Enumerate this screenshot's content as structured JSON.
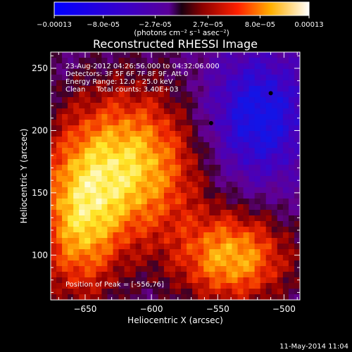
{
  "colorbar": {
    "tick_labels": [
      "-0.00013",
      "-8.0e-05",
      "-2.7e-05",
      "2.7e-05",
      "8.0e-05",
      "0.00013"
    ],
    "unit": "(photons cm⁻² s⁻¹ asec⁻²)",
    "min": -0.00013,
    "max": 0.00013
  },
  "plot": {
    "title": "Reconstructed RHESSI Image",
    "annotations": [
      "23-Aug-2012 04:26:56.000 to 04:32:06.000",
      "Detectors: 3F 5F 6F 7F 8F 9F, Att 0",
      "Energy Range: 12.0 - 25.0 keV",
      "Clean     Total counts: 3.40E+03"
    ],
    "peak_text": "Position of Peak = [-556,76]",
    "footer_date": "11-May-2014 11:04"
  },
  "chart_data": {
    "type": "heatmap",
    "title": "Reconstructed RHESSI Image",
    "xlabel": "Heliocentric X (arcsec)",
    "ylabel": "Heliocentric Y (arcsec)",
    "xlim": [
      -676,
      -488
    ],
    "ylim": [
      64,
      263
    ],
    "x_ticks": [
      -650,
      -600,
      -550,
      -500
    ],
    "y_ticks": [
      100,
      150,
      200,
      250
    ],
    "x_tick_labels": [
      "−650",
      "−600",
      "−550",
      "−500"
    ],
    "y_tick_labels": [
      "100",
      "150",
      "200",
      "250"
    ],
    "peak_position": [
      -556,
      76
    ],
    "grid": false
  }
}
